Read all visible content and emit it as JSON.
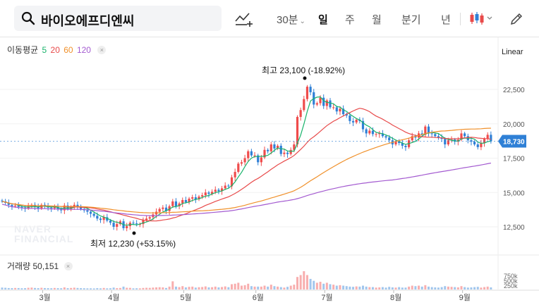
{
  "search": {
    "value": "바이오에프디엔씨"
  },
  "toolbar": {
    "periods": [
      {
        "label": "30분",
        "dropdown": true,
        "active": false
      },
      {
        "label": "일",
        "active": true
      },
      {
        "label": "주",
        "active": false
      },
      {
        "label": "월",
        "active": false
      },
      {
        "label": "분기",
        "active": false
      },
      {
        "label": "년",
        "active": false
      }
    ]
  },
  "ma_legend": {
    "title": "이동평균",
    "periods": [
      {
        "label": "5",
        "color": "#19b36b"
      },
      {
        "label": "20",
        "color": "#e84a4a"
      },
      {
        "label": "60",
        "color": "#f0902a"
      },
      {
        "label": "120",
        "color": "#a35ad0"
      }
    ],
    "close": "×"
  },
  "scale_mode": "Linear",
  "watermark": [
    "NAVER",
    "FINANCIAL"
  ],
  "volume_legend": {
    "label": "거래량",
    "value": "50,151",
    "close": "×"
  },
  "colors": {
    "up": "#ef4c4c",
    "down": "#2f80d6",
    "current": "#2f80d6"
  },
  "chart_data": {
    "type": "candlestick",
    "y_ticks": [
      12500,
      15000,
      17500,
      20000,
      22500
    ],
    "y_tick_labels": [
      "12,500",
      "15,000",
      "17,500",
      "20,000",
      "22,500"
    ],
    "ylim": [
      10800,
      25500
    ],
    "x_labels": [
      "3월",
      "4월",
      "5월",
      "6월",
      "7월",
      "8월",
      "9월"
    ],
    "current_price": 18730,
    "current_price_label": "18,730",
    "high_annotation": "최고 23,100 (-18.92%)",
    "low_annotation": "최저 12,230 (+53.15%)",
    "volume_ticks": [
      "750k",
      "500k",
      "250k"
    ],
    "closes": [
      14350,
      14250,
      14100,
      14000,
      14050,
      13950,
      13900,
      13850,
      14000,
      14100,
      13950,
      13850,
      14100,
      14000,
      13900,
      13850,
      13950,
      13800,
      13700,
      14050,
      13800,
      13950,
      14100,
      14000,
      13800,
      13700,
      13600,
      13450,
      13300,
      13100,
      13000,
      13200,
      12950,
      12800,
      12500,
      12700,
      12900,
      12400,
      12550,
      12800,
      12750,
      12700,
      12700,
      13000,
      13100,
      13200,
      13400,
      13600,
      13800,
      13900,
      13650,
      14000,
      14350,
      14000,
      14200,
      14450,
      14300,
      14550,
      14650,
      14500,
      14700,
      14800,
      15000,
      14900,
      15050,
      15200,
      15100,
      15300,
      15500,
      15450,
      16100,
      16500,
      17100,
      17200,
      17500,
      18000,
      17700,
      17700,
      17200,
      17550,
      18100,
      18000,
      18500,
      18200,
      18400,
      17800,
      17900,
      17800,
      18100,
      18500,
      20500,
      21000,
      21800,
      22700,
      22300,
      21400,
      21500,
      21900,
      21300,
      21700,
      21200,
      21200,
      20900,
      21100,
      20700,
      20600,
      20200,
      20100,
      20300,
      20200,
      19600,
      19300,
      19500,
      19250,
      19250,
      19300,
      19100,
      19000,
      18800,
      18500,
      18700,
      18600,
      18400,
      18300,
      18800,
      19100,
      19000,
      19300,
      19200,
      19800,
      19300,
      19250,
      19100,
      19000,
      18900,
      18500,
      18800,
      18850,
      18700,
      18850,
      19300,
      19100,
      18800,
      18700,
      18500,
      18300,
      18600,
      18900,
      19200,
      18730
    ],
    "volume": [
      20,
      18,
      15,
      14,
      16,
      15,
      13,
      14,
      18,
      20,
      16,
      14,
      18,
      15,
      14,
      13,
      16,
      14,
      13,
      22,
      14,
      16,
      19,
      16,
      14,
      13,
      12,
      12,
      11,
      14,
      12,
      16,
      12,
      13,
      20,
      14,
      16,
      30,
      18,
      17,
      12,
      13,
      12,
      16,
      18,
      17,
      20,
      22,
      24,
      22,
      16,
      30,
      85,
      30,
      25,
      35,
      22,
      28,
      30,
      20,
      24,
      26,
      32,
      22,
      24,
      30,
      22,
      26,
      32,
      24,
      55,
      60,
      70,
      40,
      45,
      60,
      35,
      30,
      30,
      30,
      40,
      30,
      50,
      35,
      30,
      25,
      20,
      28,
      40,
      50,
      130,
      150,
      190,
      150,
      110,
      90,
      70,
      80,
      60,
      70,
      55,
      50,
      40,
      45,
      40,
      35,
      30,
      28,
      32,
      30,
      40,
      30,
      25,
      25,
      20,
      22,
      25,
      20,
      28,
      22,
      20,
      25,
      20,
      20,
      30,
      40,
      35,
      40,
      30,
      45,
      30,
      25,
      22,
      20,
      25,
      35,
      30,
      28,
      25,
      22,
      35,
      25,
      20,
      22,
      25,
      28,
      20,
      25,
      30,
      22
    ]
  }
}
